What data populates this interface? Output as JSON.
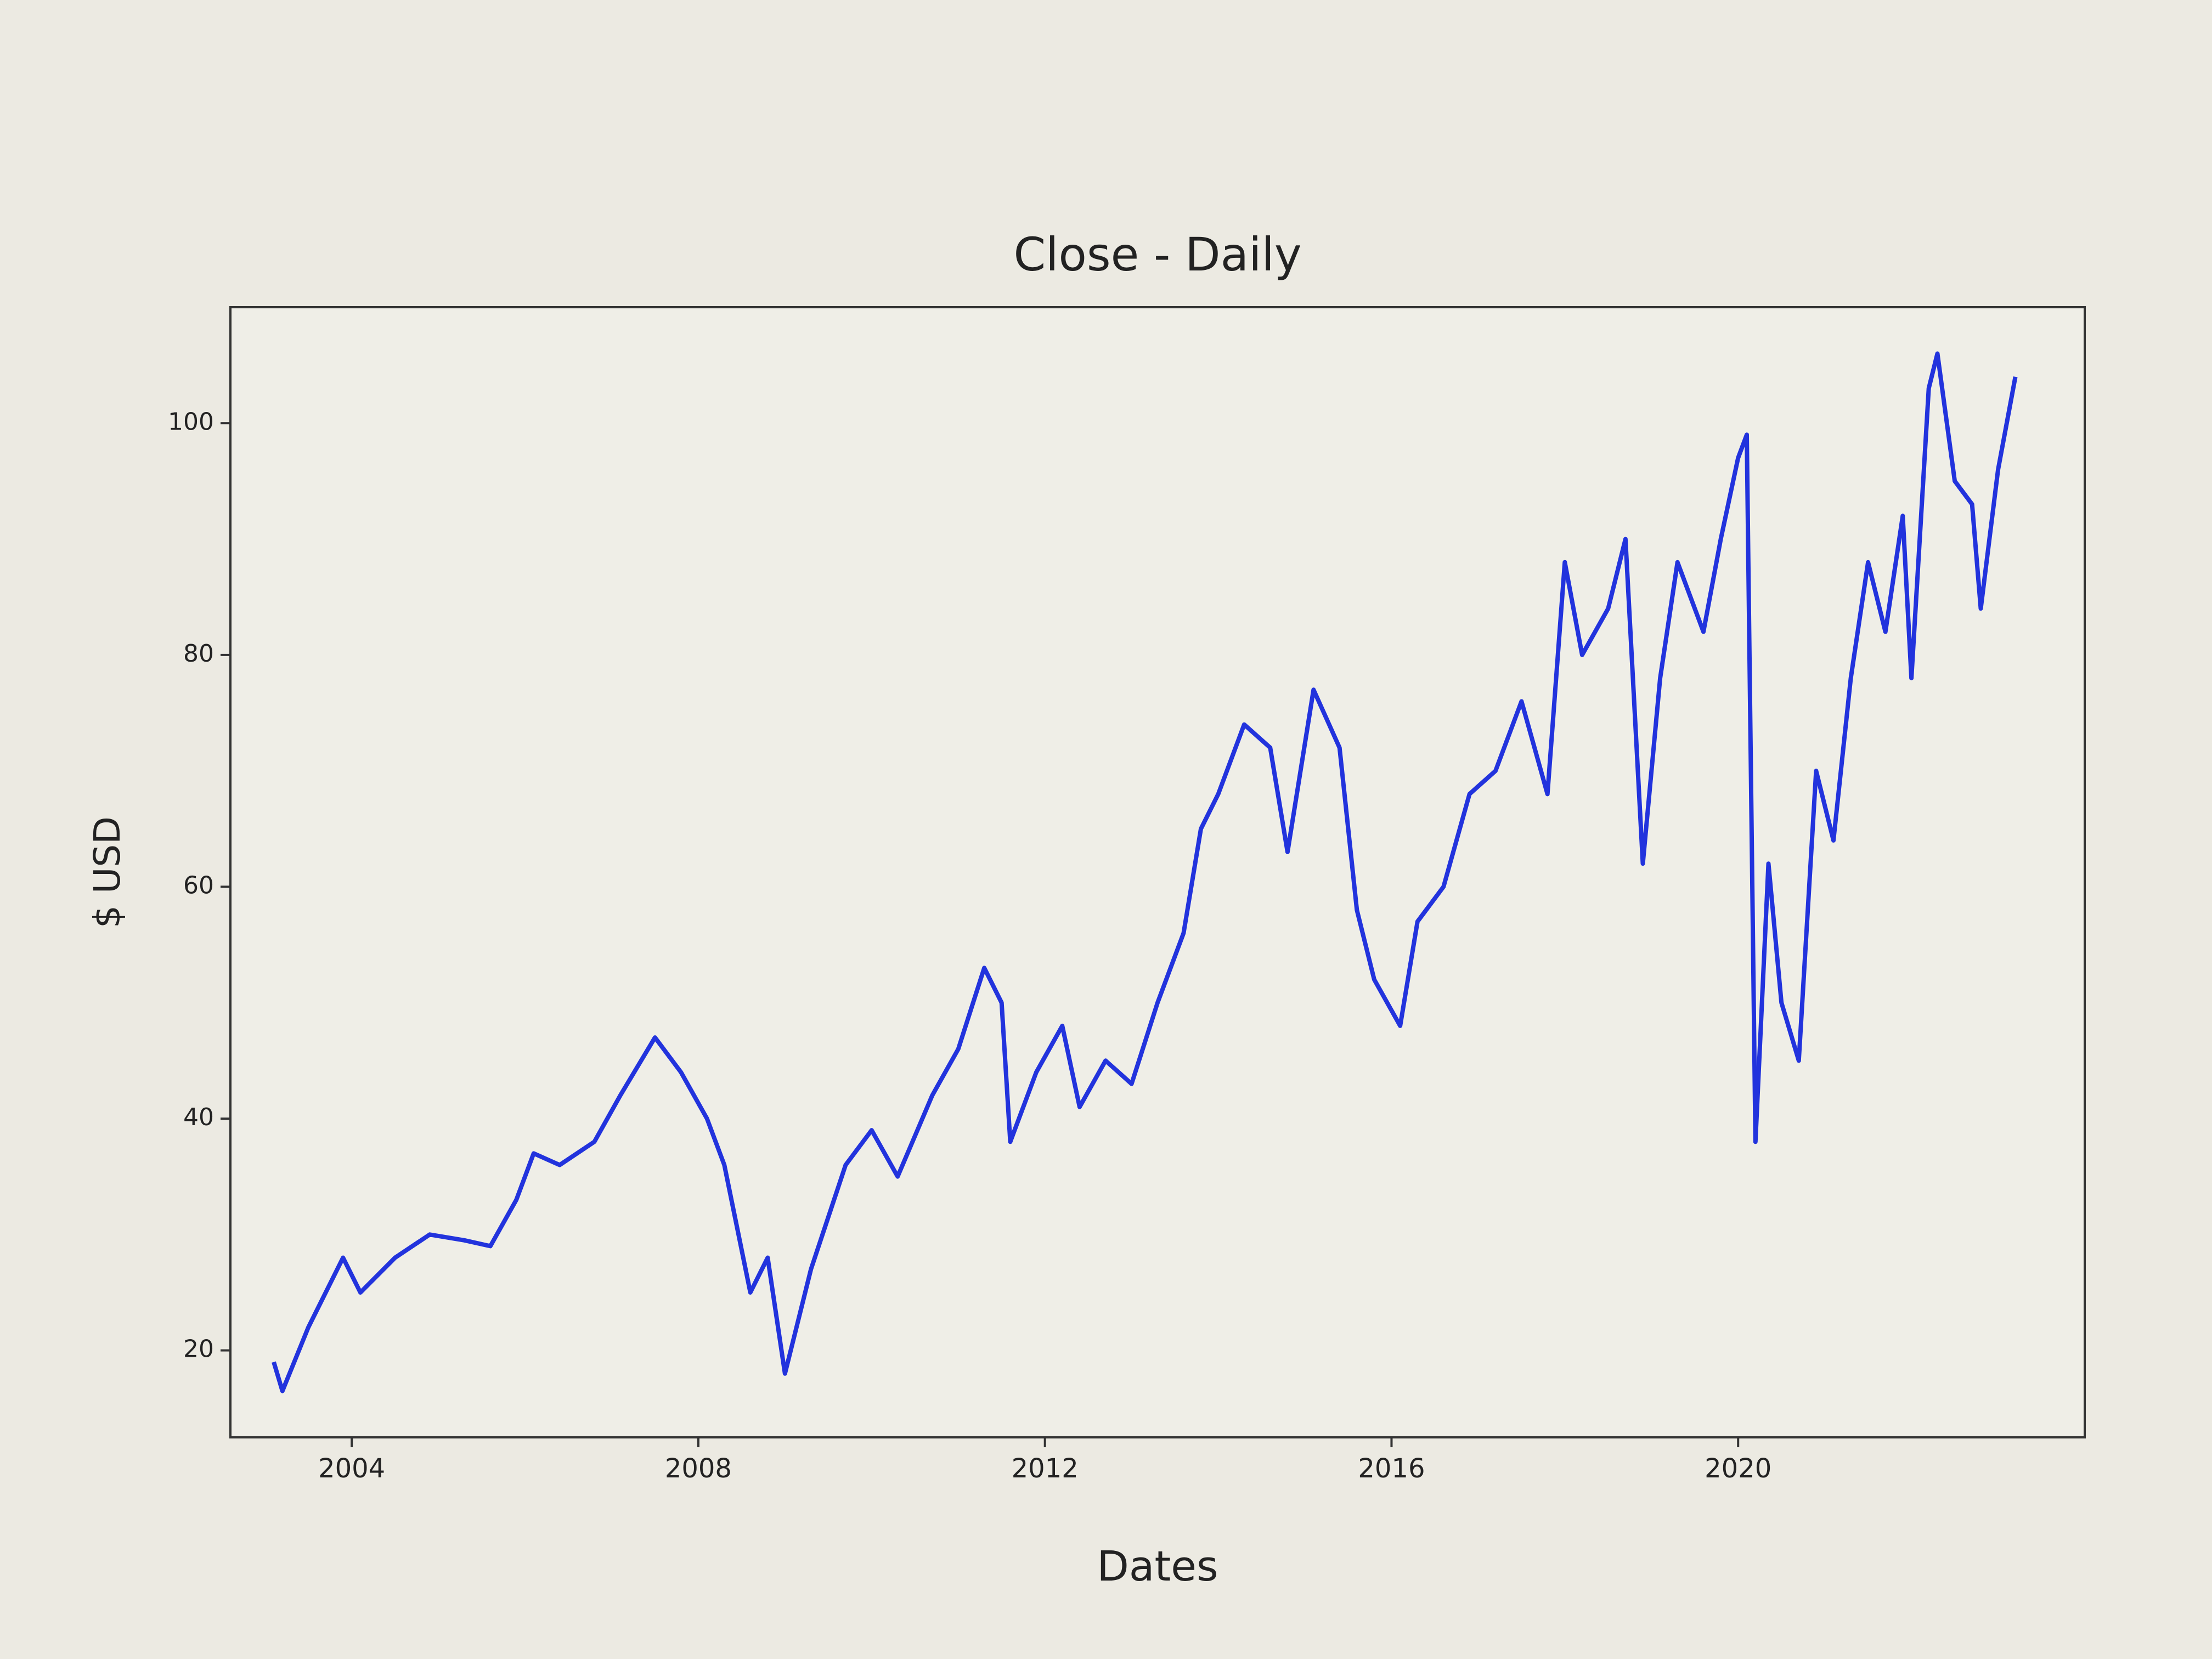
{
  "chart_data": {
    "type": "line",
    "title": "Close - Daily",
    "xlabel": "Dates",
    "ylabel": "$ USD",
    "x": [
      2003.1,
      2003.2,
      2003.5,
      2003.9,
      2004.1,
      2004.5,
      2004.9,
      2005.3,
      2005.6,
      2005.9,
      2006.1,
      2006.4,
      2006.8,
      2007.1,
      2007.5,
      2007.8,
      2008.1,
      2008.3,
      2008.6,
      2008.8,
      2009.0,
      2009.3,
      2009.7,
      2010.0,
      2010.3,
      2010.7,
      2011.0,
      2011.3,
      2011.5,
      2011.6,
      2011.9,
      2012.2,
      2012.4,
      2012.7,
      2013.0,
      2013.3,
      2013.6,
      2013.8,
      2014.0,
      2014.3,
      2014.6,
      2014.8,
      2015.1,
      2015.4,
      2015.6,
      2015.8,
      2016.1,
      2016.3,
      2016.6,
      2016.9,
      2017.2,
      2017.5,
      2017.8,
      2018.0,
      2018.2,
      2018.5,
      2018.7,
      2018.9,
      2019.1,
      2019.3,
      2019.6,
      2019.8,
      2020.0,
      2020.1,
      2020.2,
      2020.35,
      2020.5,
      2020.7,
      2020.9,
      2021.1,
      2021.3,
      2021.5,
      2021.7,
      2021.9,
      2022.0,
      2022.2,
      2022.3,
      2022.5,
      2022.7,
      2022.8,
      2023.0,
      2023.2
    ],
    "series": [
      {
        "name": "Close",
        "color": "#2233dd",
        "values": [
          19,
          16.5,
          22,
          28,
          25,
          28,
          30,
          29.5,
          29,
          33,
          37,
          36,
          38,
          42,
          47,
          44,
          40,
          36,
          25,
          28,
          18,
          27,
          36,
          39,
          35,
          42,
          46,
          53,
          50,
          38,
          44,
          48,
          41,
          45,
          43,
          50,
          56,
          65,
          68,
          74,
          72,
          63,
          77,
          72,
          58,
          52,
          48,
          57,
          60,
          68,
          70,
          76,
          68,
          88,
          80,
          84,
          90,
          62,
          78,
          88,
          82,
          90,
          97,
          99,
          38,
          62,
          50,
          45,
          70,
          64,
          78,
          88,
          82,
          92,
          78,
          103,
          106,
          95,
          93,
          84,
          96,
          104
        ]
      }
    ],
    "xlim": [
      2002.6,
      2024.0
    ],
    "xticks": [
      2004,
      2008,
      2012,
      2016,
      2020
    ],
    "ylim": [
      12.5,
      110
    ],
    "yticks": [
      20,
      40,
      60,
      80,
      100
    ]
  }
}
